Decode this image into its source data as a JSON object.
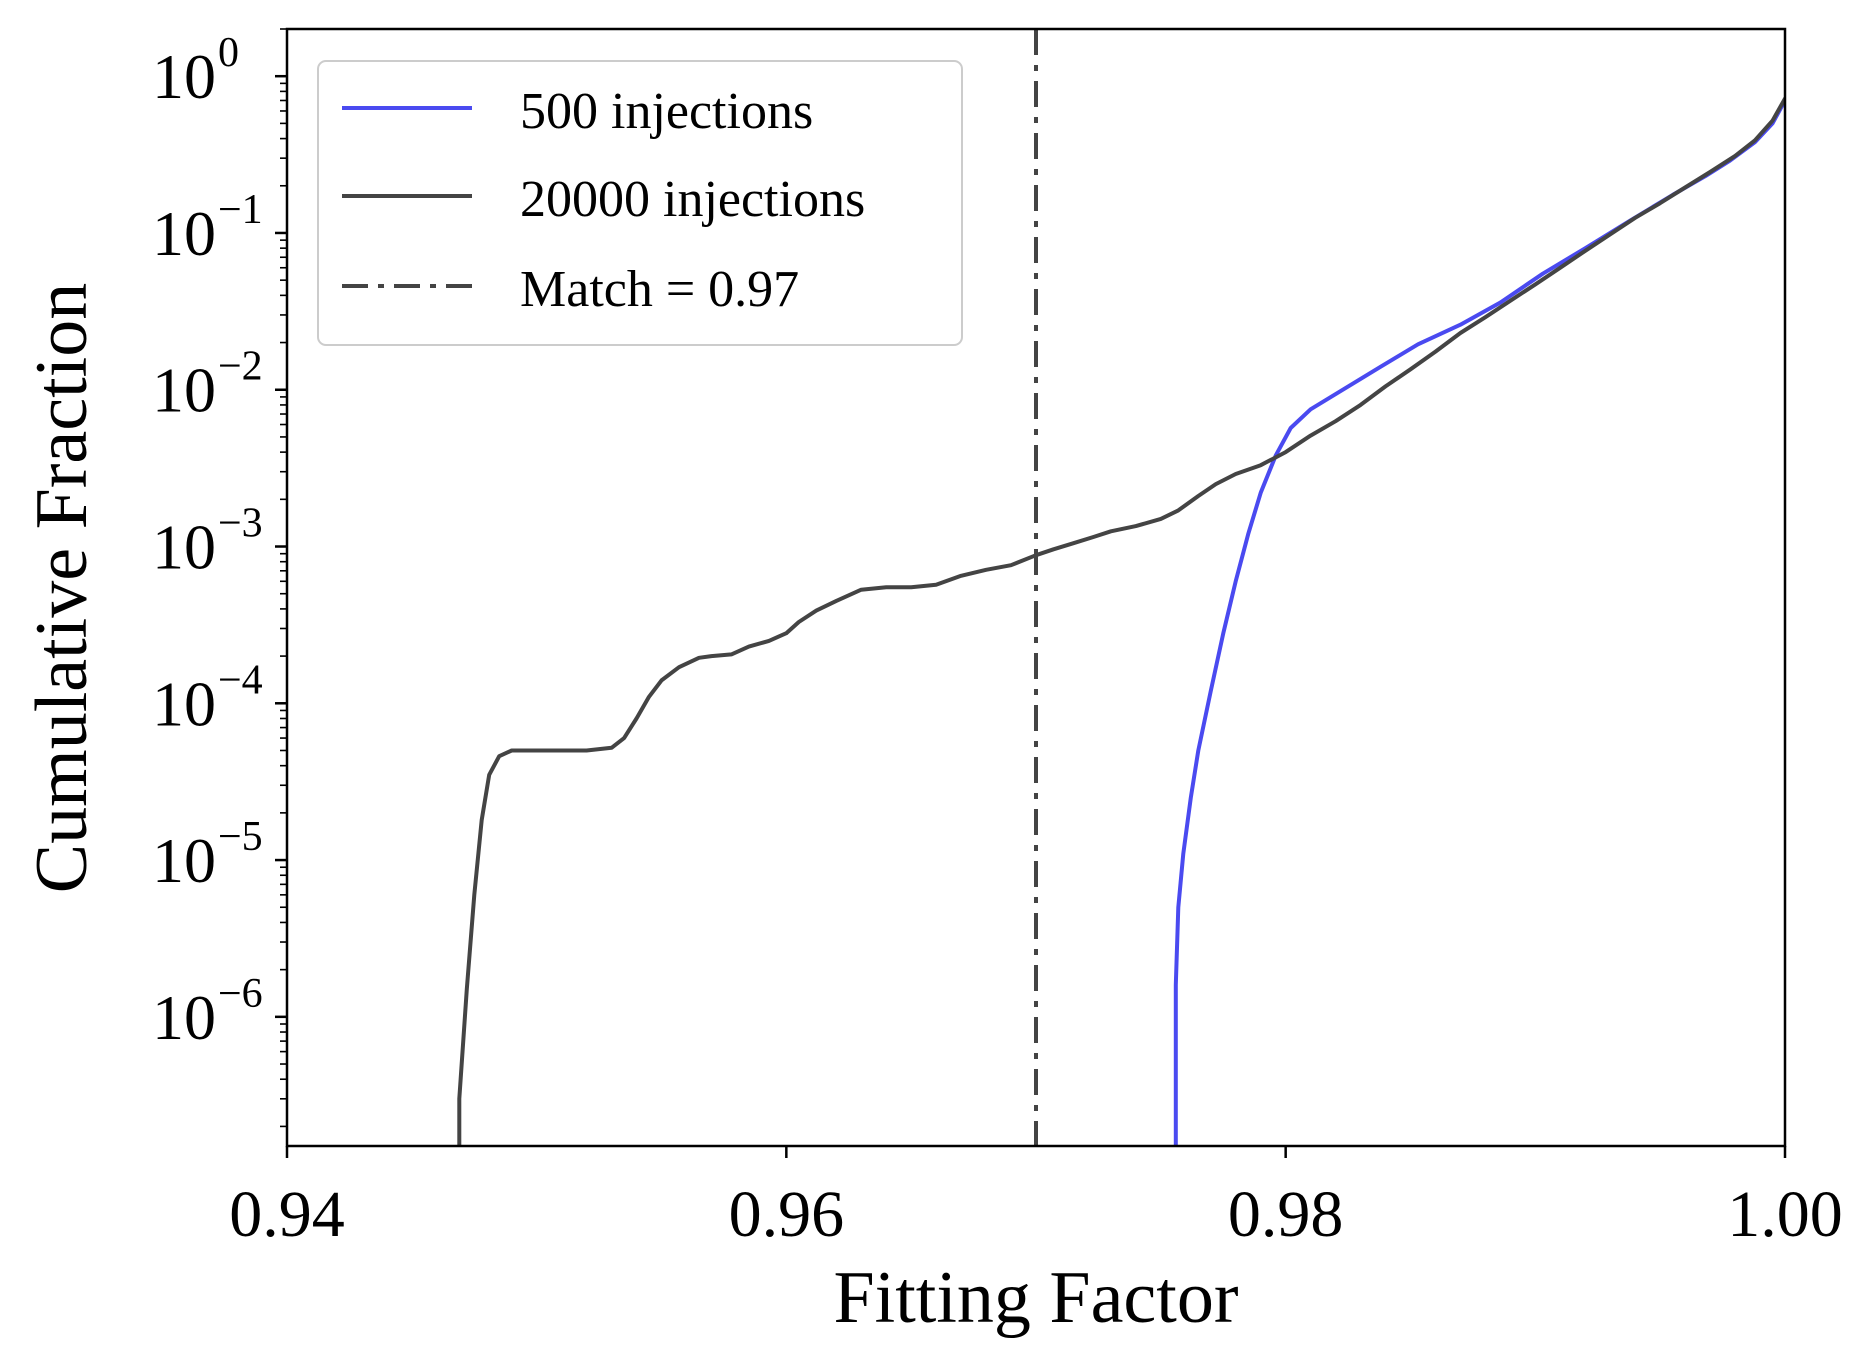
{
  "chart_data": {
    "type": "line",
    "xlabel": "Fitting Factor",
    "ylabel": "Cumulative Fraction",
    "xlim": [
      0.94,
      1.0
    ],
    "ylim": [
      1.5e-07,
      2.0
    ],
    "yscale": "log",
    "grid": false,
    "legend_position": "top-left",
    "x_ticks": [
      {
        "value": 0.94,
        "label": "0.94"
      },
      {
        "value": 0.96,
        "label": "0.96"
      },
      {
        "value": 0.98,
        "label": "0.98"
      },
      {
        "value": 1.0,
        "label": "1.00"
      }
    ],
    "y_ticks": [
      {
        "value": 1,
        "base": "10",
        "exp": "0"
      },
      {
        "value": 0.1,
        "base": "10",
        "exp": "−1"
      },
      {
        "value": 0.01,
        "base": "10",
        "exp": "−2"
      },
      {
        "value": 0.001,
        "base": "10",
        "exp": "−3"
      },
      {
        "value": 0.0001,
        "base": "10",
        "exp": "−4"
      },
      {
        "value": 1e-05,
        "base": "10",
        "exp": "−5"
      },
      {
        "value": 1e-06,
        "base": "10",
        "exp": "−6"
      }
    ],
    "series": [
      {
        "name": "500 injections",
        "color": "#4a4af0",
        "style": "solid",
        "x": [
          0.9756,
          0.9756,
          0.9757,
          0.9759,
          0.9762,
          0.9765,
          0.977,
          0.9775,
          0.978,
          0.9785,
          0.979,
          0.9796,
          0.9802,
          0.981,
          0.9822,
          0.9838,
          0.9853,
          0.987,
          0.9886,
          0.9903,
          0.992,
          0.9938,
          0.9955,
          0.9968,
          0.9978,
          0.9988,
          0.9995,
          1.0
        ],
        "y": [
          1.5e-07,
          1.6e-06,
          5e-06,
          1.1e-05,
          2.5e-05,
          5e-05,
          0.00012,
          0.00028,
          0.0006,
          0.0012,
          0.0022,
          0.0038,
          0.0057,
          0.0075,
          0.0098,
          0.014,
          0.0195,
          0.026,
          0.036,
          0.055,
          0.08,
          0.12,
          0.175,
          0.23,
          0.29,
          0.38,
          0.5,
          0.7
        ]
      },
      {
        "name": "20000 injections",
        "color": "#444444",
        "style": "solid",
        "x": [
          0.9469,
          0.9469,
          0.9472,
          0.9475,
          0.9478,
          0.9481,
          0.9485,
          0.949,
          0.95,
          0.951,
          0.952,
          0.953,
          0.9535,
          0.954,
          0.9545,
          0.955,
          0.9557,
          0.9565,
          0.957,
          0.9578,
          0.9585,
          0.9593,
          0.96,
          0.9605,
          0.9612,
          0.962,
          0.963,
          0.964,
          0.965,
          0.966,
          0.967,
          0.968,
          0.969,
          0.97,
          0.9707,
          0.9715,
          0.9723,
          0.973,
          0.974,
          0.975,
          0.9757,
          0.9765,
          0.9772,
          0.978,
          0.979,
          0.98,
          0.981,
          0.982,
          0.983,
          0.984,
          0.985,
          0.986,
          0.987,
          0.988,
          0.989,
          0.99,
          0.991,
          0.992,
          0.993,
          0.994,
          0.995,
          0.996,
          0.997,
          0.998,
          0.9988,
          0.9995,
          1.0
        ],
        "y": [
          1.5e-07,
          3e-07,
          1.5e-06,
          6e-06,
          1.8e-05,
          3.5e-05,
          4.6e-05,
          5e-05,
          5e-05,
          5e-05,
          5e-05,
          5.2e-05,
          6e-05,
          8e-05,
          0.00011,
          0.00014,
          0.00017,
          0.000195,
          0.0002,
          0.000205,
          0.00023,
          0.00025,
          0.00028,
          0.00033,
          0.00039,
          0.00045,
          0.00053,
          0.00055,
          0.00055,
          0.00057,
          0.00065,
          0.00071,
          0.00076,
          0.00088,
          0.00096,
          0.00105,
          0.00115,
          0.00125,
          0.00135,
          0.0015,
          0.0017,
          0.0021,
          0.0025,
          0.0029,
          0.0033,
          0.004,
          0.0051,
          0.0063,
          0.008,
          0.0105,
          0.0135,
          0.0175,
          0.023,
          0.029,
          0.037,
          0.047,
          0.06,
          0.077,
          0.098,
          0.125,
          0.155,
          0.195,
          0.245,
          0.31,
          0.39,
          0.52,
          0.72
        ]
      },
      {
        "name": "Match = 0.97",
        "color": "#444444",
        "style": "dashdot",
        "type": "vline",
        "x_value": 0.97
      }
    ]
  }
}
